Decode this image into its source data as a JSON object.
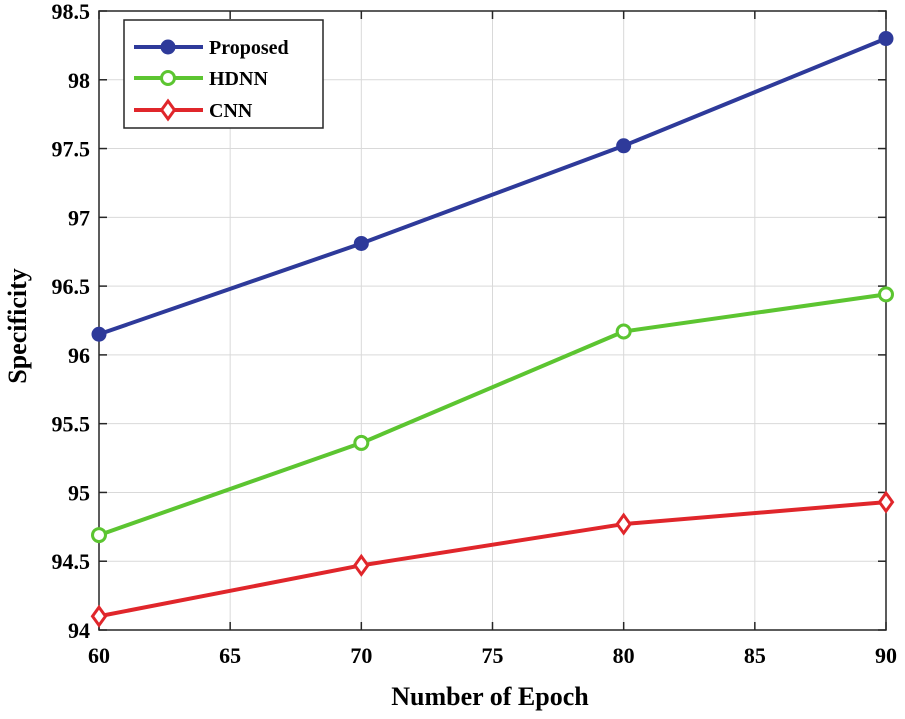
{
  "chart_data": {
    "type": "line",
    "title": "",
    "xlabel": "Number of Epoch",
    "ylabel": "Specificity",
    "x": [
      60,
      70,
      80,
      90
    ],
    "xlim": [
      60,
      90
    ],
    "ylim": [
      94,
      98.5
    ],
    "xticks": [
      60,
      65,
      70,
      75,
      80,
      85,
      90
    ],
    "yticks": [
      94,
      94.5,
      95,
      95.5,
      96,
      96.5,
      97,
      97.5,
      98,
      98.5
    ],
    "xtick_labels": [
      "60",
      "65",
      "70",
      "75",
      "80",
      "85",
      "90"
    ],
    "ytick_labels": [
      "94",
      "94.5",
      "95",
      "95.5",
      "96",
      "96.5",
      "97",
      "97.5",
      "98",
      "98.5"
    ],
    "grid": true,
    "legend_position": "top-left",
    "series": [
      {
        "name": "Proposed",
        "values": [
          96.15,
          96.81,
          97.52,
          98.3
        ],
        "color": "#2e3a9a",
        "marker": "circle-filled"
      },
      {
        "name": "HDNN",
        "values": [
          94.69,
          95.36,
          96.17,
          96.44
        ],
        "color": "#5cc531",
        "marker": "circle-open"
      },
      {
        "name": "CNN",
        "values": [
          94.1,
          94.47,
          94.77,
          94.93
        ],
        "color": "#e0262b",
        "marker": "diamond-open"
      }
    ]
  }
}
